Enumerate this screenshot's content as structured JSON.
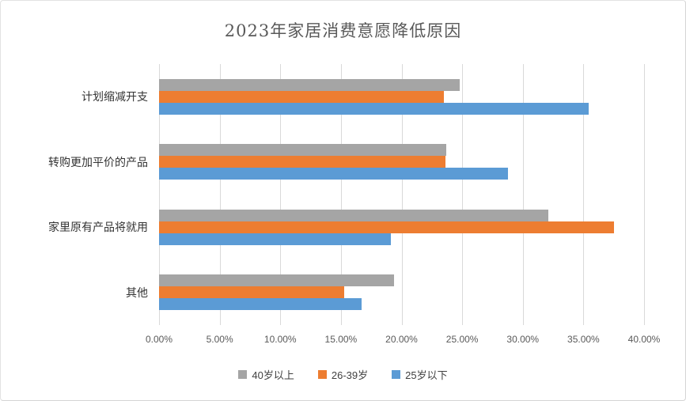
{
  "chart_data": {
    "type": "bar",
    "orientation": "horizontal",
    "title": "2023年家居消费意愿降低原因",
    "categories": [
      "计划缩减开支",
      "转购更加平价的产品",
      "家里原有产品将就用",
      "其他"
    ],
    "series": [
      {
        "name": "40岁以上",
        "color": "#A5A5A5",
        "values": [
          24.8,
          23.7,
          32.1,
          19.4
        ]
      },
      {
        "name": "26-39岁",
        "color": "#ED7D31",
        "values": [
          23.5,
          23.6,
          37.5,
          15.3
        ]
      },
      {
        "name": "25岁以下",
        "color": "#5B9BD5",
        "values": [
          35.4,
          28.8,
          19.1,
          16.7
        ]
      }
    ],
    "x_axis": {
      "min": 0,
      "max": 40,
      "step": 5,
      "unit": "%",
      "tick_labels": [
        "0.00%",
        "5.00%",
        "10.00%",
        "15.00%",
        "20.00%",
        "25.00%",
        "30.00%",
        "35.00%",
        "40.00%"
      ]
    },
    "legend": {
      "position": "bottom-center",
      "entries": [
        "40岁以上",
        "26-39岁",
        "25岁以下"
      ]
    },
    "grid": true,
    "style": {
      "gridline_color": "#d9d9d9",
      "title_color": "#595959",
      "category_label_color": "#333333",
      "tick_label_color": "#595959",
      "legend_text_color": "#404040",
      "background": "#ffffff"
    }
  }
}
